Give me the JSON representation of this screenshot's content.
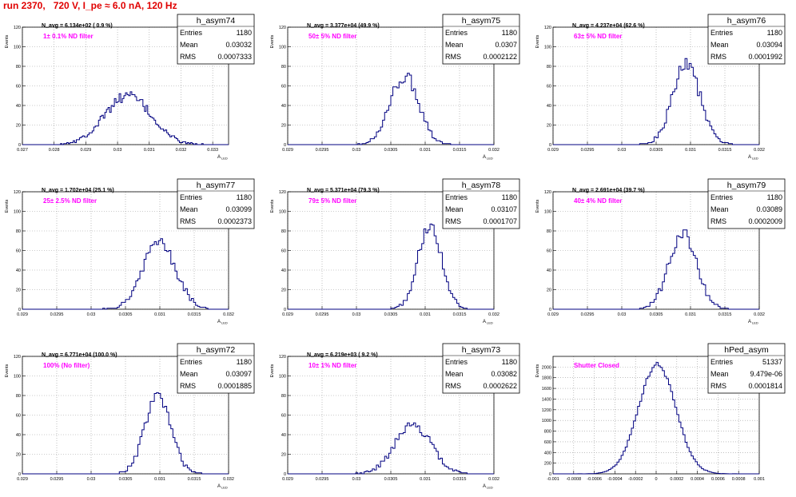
{
  "header": {
    "run_title": "run 2370,   720 V, I_pe ≈ 6.0 nA, 120 Hz"
  },
  "colors": {
    "histogram": "#000080",
    "annotation": "#ff00ff",
    "title": "#e00000",
    "grid": "#9a9a9a"
  },
  "chart_data": [
    {
      "type": "histogram",
      "name": "h_asym74",
      "ylabel": "Events",
      "xlabel": "A_LED",
      "xlim": [
        0.027,
        0.0335
      ],
      "ylim": [
        0,
        120
      ],
      "xticks": [
        0.027,
        0.028,
        0.029,
        0.03,
        0.031,
        0.032,
        0.033
      ],
      "xtick_labels": [
        "0.027",
        "0.028",
        "0.029",
        "0.03",
        "0.031",
        "0.032",
        "0.033"
      ],
      "yticks": [
        0,
        20,
        40,
        60,
        80,
        100,
        120
      ],
      "navg": "N_avg = 6.134e+02 ( 0.9 %)",
      "filter": "1± 0.1% ND filter",
      "stats": {
        "entries": "1180",
        "mean": "0.03032",
        "rms": "0.0007333"
      },
      "shape": {
        "mean": 0.03032,
        "sigma": 0.00073,
        "peak": 50,
        "bin": 5e-05
      }
    },
    {
      "type": "histogram",
      "name": "h_asym75",
      "ylabel": "Events",
      "xlabel": "A_LED",
      "xlim": [
        0.029,
        0.032
      ],
      "ylim": [
        0,
        120
      ],
      "xticks": [
        0.029,
        0.0295,
        0.03,
        0.0305,
        0.031,
        0.0315,
        0.032
      ],
      "xtick_labels": [
        "0.029",
        "0.0295",
        "0.03",
        "0.0305",
        "0.031",
        "0.0315",
        "0.032"
      ],
      "yticks": [
        0,
        20,
        40,
        60,
        80,
        100,
        120
      ],
      "navg": "N_avg = 3.377e+04 (49.9 %)",
      "filter": "50± 5% ND filter",
      "stats": {
        "entries": "1180",
        "mean": "0.0307",
        "rms": "0.0002122"
      },
      "shape": {
        "mean": 0.0307,
        "sigma": 0.00021,
        "peak": 70,
        "bin": 3e-05
      }
    },
    {
      "type": "histogram",
      "name": "h_asym76",
      "ylabel": "Events",
      "xlabel": "A_LED",
      "xlim": [
        0.029,
        0.032
      ],
      "ylim": [
        0,
        120
      ],
      "xticks": [
        0.029,
        0.0295,
        0.03,
        0.0305,
        0.031,
        0.0315,
        0.032
      ],
      "xtick_labels": [
        "0.029",
        "0.0295",
        "0.03",
        "0.0305",
        "0.031",
        "0.0315",
        "0.032"
      ],
      "yticks": [
        0,
        20,
        40,
        60,
        80,
        100,
        120
      ],
      "navg": "N_avg = 4.237e+04 (62.6 %)",
      "filter": "63± 5% ND filter",
      "stats": {
        "entries": "1180",
        "mean": "0.03094",
        "rms": "0.0001992"
      },
      "shape": {
        "mean": 0.03094,
        "sigma": 0.0002,
        "peak": 82,
        "bin": 3e-05
      }
    },
    {
      "type": "histogram",
      "name": "h_asym77",
      "ylabel": "Events",
      "xlabel": "A_LED",
      "xlim": [
        0.029,
        0.032
      ],
      "ylim": [
        0,
        120
      ],
      "xticks": [
        0.029,
        0.0295,
        0.03,
        0.0305,
        0.031,
        0.0315,
        0.032
      ],
      "xtick_labels": [
        "0.029",
        "0.0295",
        "0.03",
        "0.0305",
        "0.031",
        "0.0315",
        "0.032"
      ],
      "yticks": [
        0,
        20,
        40,
        60,
        80,
        100,
        120
      ],
      "navg": "N_avg = 1.702e+04 (25.1 %)",
      "filter": "25± 2.5% ND filter",
      "stats": {
        "entries": "1180",
        "mean": "0.03099",
        "rms": "0.0002373"
      },
      "shape": {
        "mean": 0.03099,
        "sigma": 0.00024,
        "peak": 68,
        "bin": 3e-05
      }
    },
    {
      "type": "histogram",
      "name": "h_asym78",
      "ylabel": "Events",
      "xlabel": "A_LED",
      "xlim": [
        0.029,
        0.032
      ],
      "ylim": [
        0,
        120
      ],
      "xticks": [
        0.029,
        0.0295,
        0.03,
        0.0305,
        0.031,
        0.0315,
        0.032
      ],
      "xtick_labels": [
        "0.029",
        "0.0295",
        "0.03",
        "0.0305",
        "0.031",
        "0.0315",
        "0.032"
      ],
      "yticks": [
        0,
        20,
        40,
        60,
        80,
        100,
        120
      ],
      "navg": "N_avg = 5.371e+04 (79.3 %)",
      "filter": "79± 5% ND filter",
      "stats": {
        "entries": "1180",
        "mean": "0.03107",
        "rms": "0.0001707"
      },
      "shape": {
        "mean": 0.03107,
        "sigma": 0.00017,
        "peak": 88,
        "bin": 3e-05
      }
    },
    {
      "type": "histogram",
      "name": "h_asym79",
      "ylabel": "Events",
      "xlabel": "A_LED",
      "xlim": [
        0.029,
        0.032
      ],
      "ylim": [
        0,
        120
      ],
      "xticks": [
        0.029,
        0.0295,
        0.03,
        0.0305,
        0.031,
        0.0315,
        0.032
      ],
      "xtick_labels": [
        "0.029",
        "0.0295",
        "0.03",
        "0.0305",
        "0.031",
        "0.0315",
        "0.032"
      ],
      "yticks": [
        0,
        20,
        40,
        60,
        80,
        100,
        120
      ],
      "navg": "N_avg = 2.691e+04 (39.7 %)",
      "filter": "40± 4% ND filter",
      "stats": {
        "entries": "1180",
        "mean": "0.03089",
        "rms": "0.0002009"
      },
      "shape": {
        "mean": 0.03089,
        "sigma": 0.0002,
        "peak": 78,
        "bin": 3e-05
      }
    },
    {
      "type": "histogram",
      "name": "h_asym72",
      "ylabel": "Events",
      "xlabel": "A_LED",
      "xlim": [
        0.029,
        0.032
      ],
      "ylim": [
        0,
        120
      ],
      "xticks": [
        0.029,
        0.0295,
        0.03,
        0.0305,
        0.031,
        0.0315,
        0.032
      ],
      "xtick_labels": [
        "0.029",
        "0.0295",
        "0.03",
        "0.0305",
        "0.031",
        "0.0315",
        "0.032"
      ],
      "yticks": [
        0,
        20,
        40,
        60,
        80,
        100,
        120
      ],
      "navg": "N_avg = 6.771e+04 (100.0 %)",
      "filter": "100% (No filter)",
      "stats": {
        "entries": "1180",
        "mean": "0.03097",
        "rms": "0.0001885"
      },
      "shape": {
        "mean": 0.03097,
        "sigma": 0.00019,
        "peak": 78,
        "bin": 3e-05
      }
    },
    {
      "type": "histogram",
      "name": "h_asym73",
      "ylabel": "Events",
      "xlabel": "A_LED",
      "xlim": [
        0.029,
        0.032
      ],
      "ylim": [
        0,
        120
      ],
      "xticks": [
        0.029,
        0.0295,
        0.03,
        0.0305,
        0.031,
        0.0315,
        0.032
      ],
      "xtick_labels": [
        "0.029",
        "0.0295",
        "0.03",
        "0.0305",
        "0.031",
        "0.0315",
        "0.032"
      ],
      "yticks": [
        0,
        20,
        40,
        60,
        80,
        100,
        120
      ],
      "navg": "N_avg = 6.219e+03 ( 9.2 %)",
      "filter": "10± 1% ND filter",
      "stats": {
        "entries": "1180",
        "mean": "0.03082",
        "rms": "0.0002622"
      },
      "shape": {
        "mean": 0.03082,
        "sigma": 0.00026,
        "peak": 50,
        "bin": 3e-05
      }
    },
    {
      "type": "histogram",
      "name": "hPed_asym",
      "ylabel": "Events",
      "xlabel": "",
      "xlim": [
        -0.001,
        0.001
      ],
      "ylim": [
        0,
        2200
      ],
      "xticks": [
        -0.001,
        -0.0008,
        -0.0006,
        -0.0004,
        -0.0002,
        0,
        0.0002,
        0.0004,
        0.0006,
        0.0008,
        0.001
      ],
      "xtick_labels": [
        "-0.001",
        "-0.0008",
        "-0.0006",
        "-0.0004",
        "-0.0002",
        "0",
        "0.0002",
        "0.0004",
        "0.0006",
        "0.0008",
        "0.001"
      ],
      "yticks": [
        0,
        200,
        400,
        600,
        800,
        1000,
        1200,
        1400,
        1600,
        1800,
        2000
      ],
      "navg": "",
      "filter": "Shutter Closed",
      "stats": {
        "entries": "51337",
        "mean": "9.479e-06",
        "rms": "0.0001814"
      },
      "shape": {
        "mean": 9.5e-06,
        "sigma": 0.00018,
        "peak": 2050,
        "bin": 2e-05
      }
    }
  ]
}
